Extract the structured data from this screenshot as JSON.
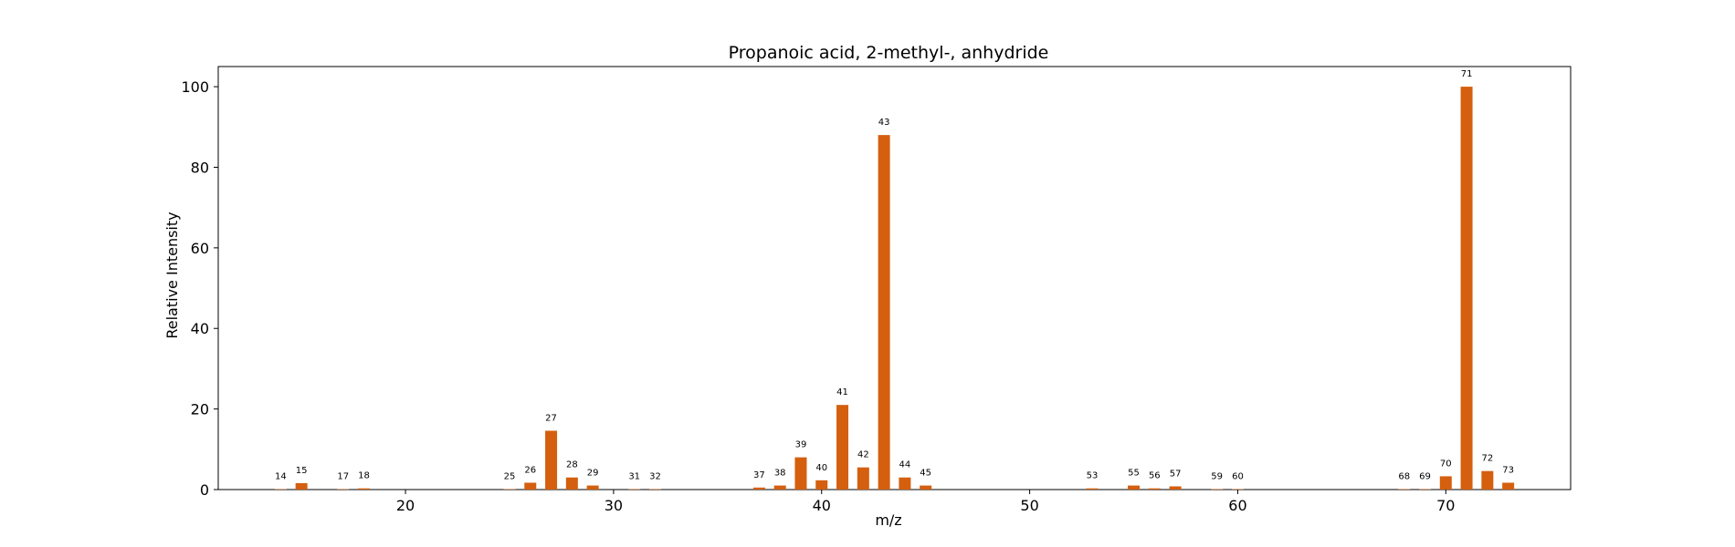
{
  "chart_data": {
    "type": "bar",
    "title": "Propanoic acid, 2-methyl-, anhydride",
    "xlabel": "m/z",
    "ylabel": "Relative Intensity",
    "xlim": [
      11,
      76
    ],
    "ylim": [
      0,
      105
    ],
    "xticks": [
      20,
      30,
      40,
      50,
      60,
      70
    ],
    "yticks": [
      0,
      20,
      40,
      60,
      80,
      100
    ],
    "grid": false,
    "bar_color": "#d45f0e",
    "peaks": [
      {
        "mz": 14,
        "intensity": 0.1
      },
      {
        "mz": 15,
        "intensity": 1.6
      },
      {
        "mz": 17,
        "intensity": 0.1
      },
      {
        "mz": 18,
        "intensity": 0.3
      },
      {
        "mz": 25,
        "intensity": 0.1
      },
      {
        "mz": 26,
        "intensity": 1.7
      },
      {
        "mz": 27,
        "intensity": 14.6
      },
      {
        "mz": 28,
        "intensity": 3.0
      },
      {
        "mz": 29,
        "intensity": 1.0
      },
      {
        "mz": 31,
        "intensity": 0.1
      },
      {
        "mz": 32,
        "intensity": 0.1
      },
      {
        "mz": 37,
        "intensity": 0.5
      },
      {
        "mz": 38,
        "intensity": 1.0
      },
      {
        "mz": 39,
        "intensity": 8.0
      },
      {
        "mz": 40,
        "intensity": 2.3
      },
      {
        "mz": 41,
        "intensity": 21.0
      },
      {
        "mz": 42,
        "intensity": 5.5
      },
      {
        "mz": 43,
        "intensity": 88.0
      },
      {
        "mz": 44,
        "intensity": 3.0
      },
      {
        "mz": 45,
        "intensity": 1.0
      },
      {
        "mz": 53,
        "intensity": 0.3
      },
      {
        "mz": 55,
        "intensity": 1.0
      },
      {
        "mz": 56,
        "intensity": 0.3
      },
      {
        "mz": 57,
        "intensity": 0.8
      },
      {
        "mz": 59,
        "intensity": 0.1
      },
      {
        "mz": 60,
        "intensity": 0.1
      },
      {
        "mz": 68,
        "intensity": 0.1
      },
      {
        "mz": 69,
        "intensity": 0.1
      },
      {
        "mz": 70,
        "intensity": 3.3
      },
      {
        "mz": 71,
        "intensity": 100.0
      },
      {
        "mz": 72,
        "intensity": 4.6
      },
      {
        "mz": 73,
        "intensity": 1.7
      }
    ]
  }
}
